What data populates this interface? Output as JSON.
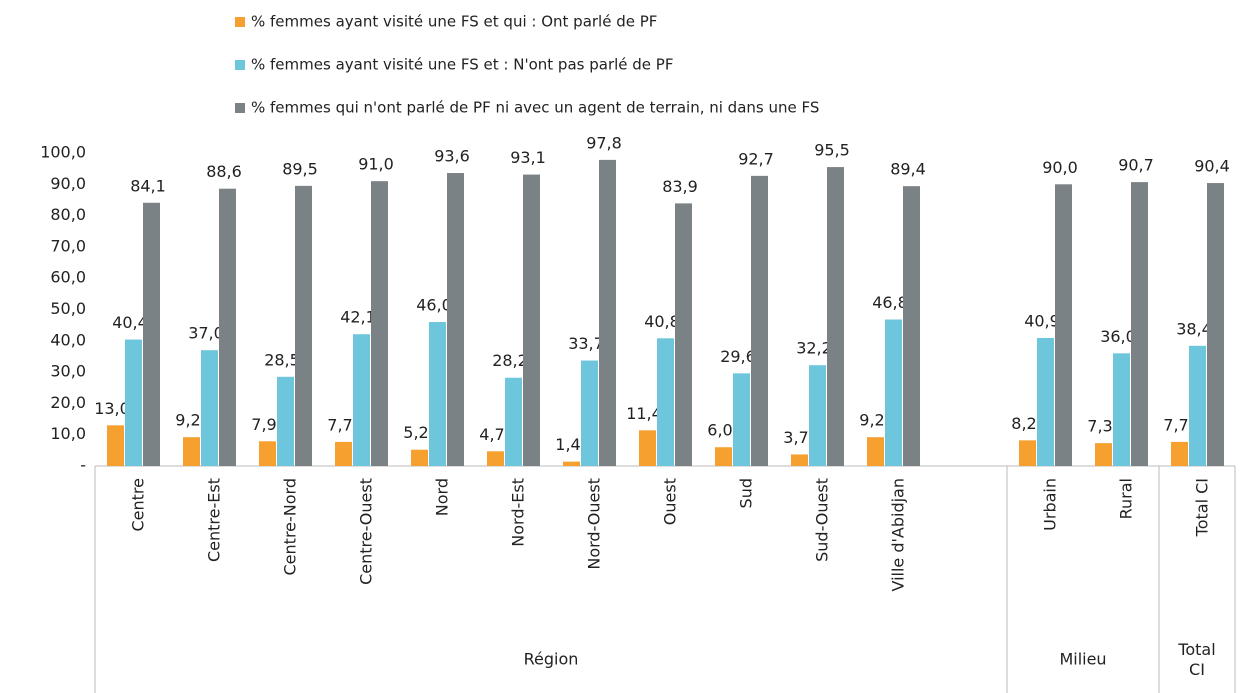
{
  "chart_data": {
    "type": "bar",
    "categories": [
      "Centre",
      "Centre-Est",
      "Centre-Nord",
      "Centre-Ouest",
      "Nord",
      "Nord-Est",
      "Nord-Ouest",
      "Ouest",
      "Sud",
      "Sud-Ouest",
      "Ville d'Abidjan",
      null,
      "Urbain",
      "Rural",
      "Total CI"
    ],
    "groups": [
      {
        "name": "Région",
        "size": 12
      },
      {
        "name": "Milieu",
        "size": 2
      },
      {
        "name": "Total CI",
        "size": 1
      }
    ],
    "series": [
      {
        "name": "% femmes ayant visité une FS et qui : Ont parlé de PF",
        "color": "#f5a02f",
        "values": [
          13.0,
          9.2,
          7.9,
          7.7,
          5.2,
          4.7,
          1.4,
          11.4,
          6.0,
          3.7,
          9.2,
          null,
          8.2,
          7.3,
          7.7
        ],
        "value_labels": [
          "13,0",
          "9,2",
          "7,9",
          "7,7",
          "5,2",
          "4,7",
          "1,4",
          "11,4",
          "6,0",
          "3,7",
          "9,2",
          null,
          "8,2",
          "7,3",
          "7,7"
        ]
      },
      {
        "name": "% femmes ayant visité une FS et : N'ont pas parlé de PF",
        "color": "#6ec6dc",
        "values": [
          40.4,
          37.0,
          28.5,
          42.1,
          46.0,
          28.2,
          33.7,
          40.8,
          29.6,
          32.2,
          46.8,
          null,
          40.9,
          36.0,
          38.4
        ],
        "value_labels": [
          "40,4",
          "37,0",
          "28,5",
          "42,1",
          "46,0",
          "28,2",
          "33,7",
          "40,8",
          "29,6",
          "32,2",
          "46,8",
          null,
          "40,9",
          "36,0",
          "38,4"
        ]
      },
      {
        "name": "% femmes qui n'ont parlé de PF ni avec un agent de terrain, ni dans une FS",
        "color": "#7a8285",
        "values": [
          84.1,
          88.6,
          89.5,
          91.0,
          93.6,
          93.1,
          97.8,
          83.9,
          92.7,
          95.5,
          89.4,
          null,
          90.0,
          90.7,
          90.4
        ],
        "value_labels": [
          "84,1",
          "88,6",
          "89,5",
          "91,0",
          "93,6",
          "93,1",
          "97,8",
          "83,9",
          "92,7",
          "95,5",
          "89,4",
          null,
          "90,0",
          "90,7",
          "90,4"
        ]
      }
    ],
    "ylim": [
      0,
      100
    ],
    "yticks": [
      {
        "value": 0,
        "label": "-"
      },
      {
        "value": 10,
        "label": "10,0"
      },
      {
        "value": 20,
        "label": "20,0"
      },
      {
        "value": 30,
        "label": "30,0"
      },
      {
        "value": 40,
        "label": "40,0"
      },
      {
        "value": 50,
        "label": "50,0"
      },
      {
        "value": 60,
        "label": "60,0"
      },
      {
        "value": 70,
        "label": "70,0"
      },
      {
        "value": 80,
        "label": "80,0"
      },
      {
        "value": 90,
        "label": "90,0"
      },
      {
        "value": 100,
        "label": "100,0"
      }
    ],
    "legend": "top"
  }
}
